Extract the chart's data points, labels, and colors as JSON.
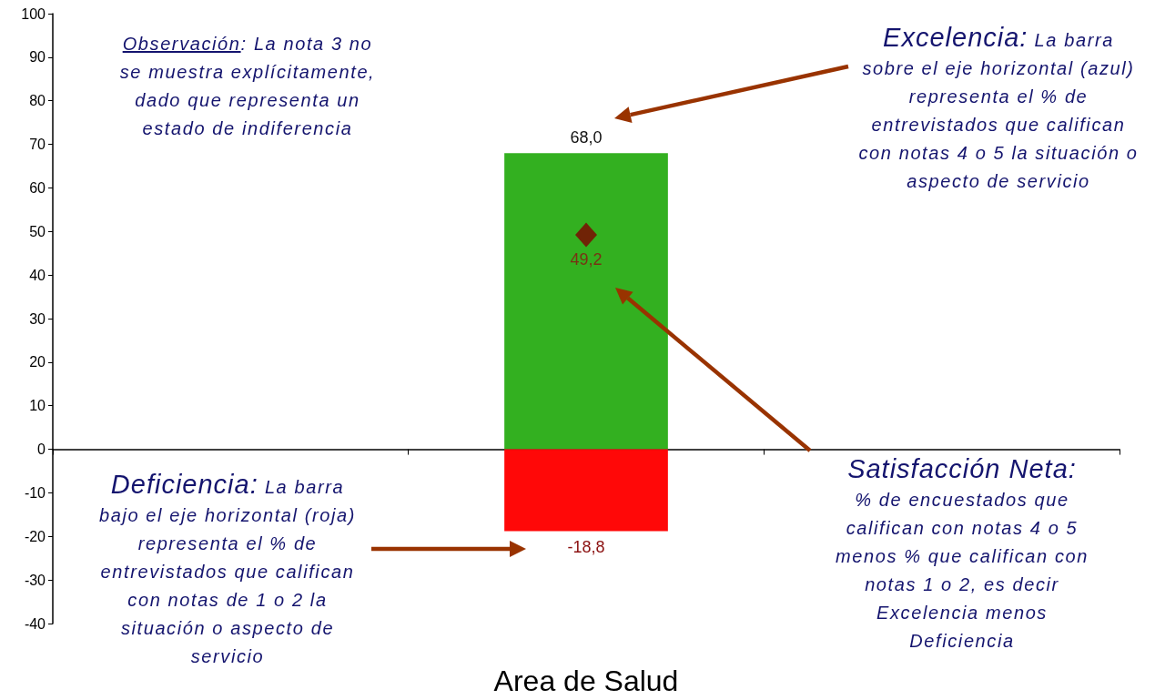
{
  "chart_data": {
    "type": "bar",
    "categories": [
      null,
      null,
      null
    ],
    "xlabel": "Area de Salud",
    "series": [
      {
        "color": "#33b020",
        "values": [
          null,
          68.0,
          null
        ],
        "value_labels": [
          null,
          "68,0",
          null
        ]
      },
      {
        "color": "#ff0808",
        "values": [
          null,
          -18.8,
          null
        ],
        "value_labels": [
          null,
          "-18,8",
          null
        ]
      },
      {
        "type": "scatter",
        "color": "#800000",
        "values": [
          null,
          49.2,
          null
        ],
        "value_labels": [
          null,
          "49,2",
          null
        ]
      }
    ],
    "stacked": true,
    "marker": "diamond",
    "ylim": [
      -40,
      100
    ],
    "yticks": [
      -40,
      -30,
      -20,
      -10,
      0,
      10,
      20,
      30,
      40,
      50,
      60,
      70,
      80,
      90,
      100
    ],
    "annotations": [
      "Observación: La nota 3 no se muestra explícitamente, dado que representa un estado de indiferencia",
      "Excelencia: La barra sobre el eje horizontal (azul) representa el % de entrevistados que califican con notas 4 o 5 la situación o aspecto de servicio",
      "Deficiencia: La barra bajo el eje horizontal (roja) representa el % de entrevistados que califican con notas de 1 o 2 la situación o aspecto de servicio",
      "Satisfacción Neta: % de encuestados que califican con notas 4 o 5 menos % que califican con notas 1 o 2, es decir Excelencia menos Deficiencia"
    ]
  }
}
